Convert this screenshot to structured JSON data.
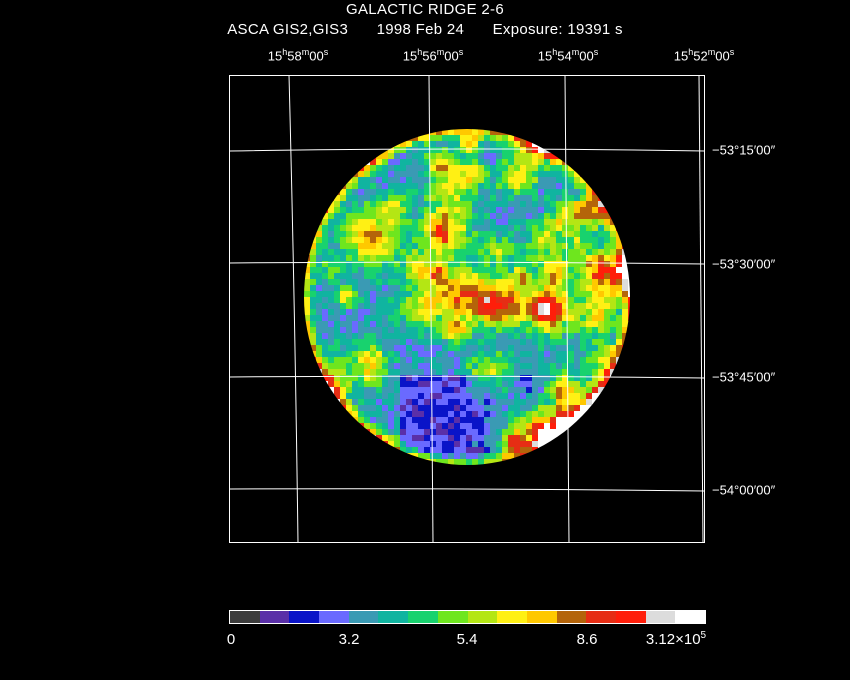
{
  "title": "GALACTIC RIDGE 2-6",
  "subtitle": {
    "instrument": "ASCA GIS2,GIS3",
    "date": "1998 Feb 24",
    "exposure": "Exposure: 19391 s"
  },
  "ra_ticks": [
    {
      "h": "15",
      "m": "58",
      "s": "00"
    },
    {
      "h": "15",
      "m": "56",
      "s": "00"
    },
    {
      "h": "15",
      "m": "54",
      "s": "00"
    },
    {
      "h": "15",
      "m": "52",
      "s": "00"
    }
  ],
  "dec_ticks": [
    "−53°15′00″",
    "−53°30′00″",
    "−53°45′00″",
    "−54°00′00″"
  ],
  "colorbar": {
    "colors": [
      "#3c3c3c",
      "#5a2fa8",
      "#0a14c8",
      "#6a6aff",
      "#3a9ab4",
      "#10b4a0",
      "#18d26e",
      "#6ee61e",
      "#b4e614",
      "#fff014",
      "#ffc800",
      "#b4640a",
      "#e62d14",
      "#ff1e0a",
      "#dcdcdc",
      "#ffffff"
    ],
    "labels": [
      {
        "text": "0",
        "sup": ""
      },
      {
        "text": "3.2",
        "sup": ""
      },
      {
        "text": "5.4",
        "sup": ""
      },
      {
        "text": "8.6",
        "sup": ""
      },
      {
        "text": "3.12×10",
        "sup": "5"
      }
    ]
  }
}
